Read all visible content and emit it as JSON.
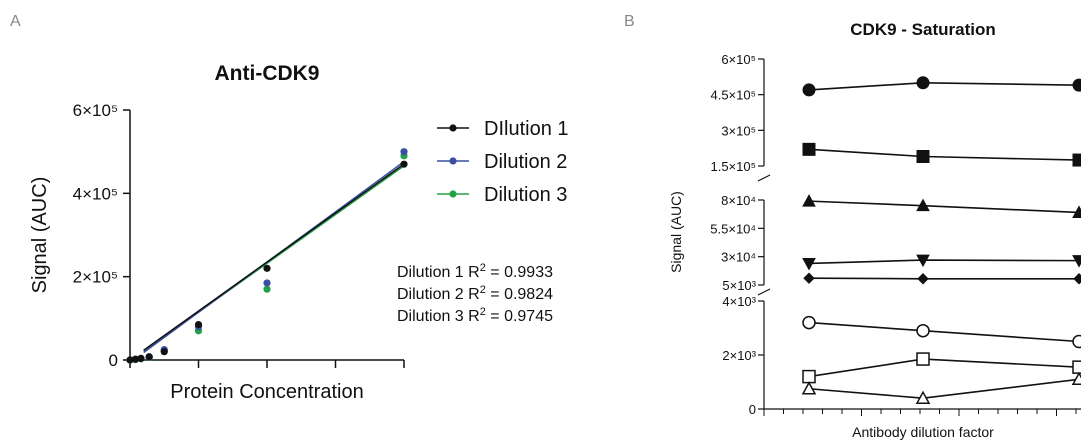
{
  "panel_letters": {
    "a": "A",
    "b": "B"
  },
  "chart_data": [
    {
      "type": "scatter",
      "title": "Anti-CDK9",
      "xlabel": "Protein Concentration",
      "ylabel": "Signal (AUC)",
      "ylim": [
        0,
        600000
      ],
      "xlim": [
        0,
        100
      ],
      "yticks": [
        {
          "value": 0,
          "label": "0"
        },
        {
          "value": 200000,
          "label": "2×10⁵"
        },
        {
          "value": 400000,
          "label": "4×10⁵"
        },
        {
          "value": 600000,
          "label": "6×10⁵"
        }
      ],
      "xticks": [
        0,
        25,
        50,
        75,
        100
      ],
      "legend_position": "right",
      "series": [
        {
          "name": "DIlution 1",
          "color": "#111111",
          "x": [
            0,
            2,
            4,
            7,
            12.5,
            50,
            100
          ],
          "y": [
            0,
            2000,
            4000,
            8000,
            20000,
            220000,
            470000
          ],
          "fit": [
            0,
            470000
          ]
        },
        {
          "name": "Dilution 2",
          "color": "#3a4fa0",
          "x": [
            0,
            2,
            4,
            7,
            12.5,
            25,
            50,
            100
          ],
          "y": [
            0,
            2000,
            3000,
            7000,
            25000,
            80000,
            185000,
            500000
          ],
          "fit": [
            -6000,
            476000
          ]
        },
        {
          "name": "Dilution 3",
          "color": "#23a04a",
          "x": [
            0,
            2,
            4,
            7,
            12.5,
            25,
            50,
            100
          ],
          "y": [
            0,
            1000,
            3000,
            6000,
            22000,
            70000,
            170000,
            490000
          ],
          "fit": [
            -2000,
            466000
          ]
        }
      ],
      "extra_points": [
        {
          "series": "DIlution 1",
          "x": 25,
          "y": 85000
        }
      ],
      "annotations": [
        {
          "label": "Dilution 1 R",
          "sup": "2",
          "rest": " = 0.9933"
        },
        {
          "label": "Dilution 2 R",
          "sup": "2",
          "rest": " = 0.9824"
        },
        {
          "label": "Dilution 3 R",
          "sup": "2",
          "rest": " = 0.9745"
        }
      ]
    },
    {
      "type": "line",
      "title": "CDK9 - Saturation",
      "xlabel": "Antibody dilution factor",
      "ylabel": "Signal (AUC)",
      "axis_breaks": true,
      "x": [
        1,
        2,
        3
      ],
      "segments": [
        {
          "ylim": [
            0,
            4000
          ],
          "ticks": [
            {
              "value": 0,
              "label": "0"
            },
            {
              "value": 2000,
              "label": "2×10³"
            },
            {
              "value": 4000,
              "label": "4×10³"
            }
          ]
        },
        {
          "ylim": [
            5000,
            80000
          ],
          "ticks": [
            {
              "value": 5000,
              "label": "5×10³"
            },
            {
              "value": 30000,
              "label": "3×10⁴"
            },
            {
              "value": 55000,
              "label": "5.5×10⁴"
            },
            {
              "value": 80000,
              "label": "8×10⁴"
            }
          ]
        },
        {
          "ylim": [
            150000,
            600000
          ],
          "ticks": [
            {
              "value": 150000,
              "label": "1.5×10⁵"
            },
            {
              "value": 300000,
              "label": "3×10⁵"
            },
            {
              "value": 450000,
              "label": "4.5×10⁵"
            },
            {
              "value": 600000,
              "label": "6×10⁵"
            }
          ]
        }
      ],
      "series": [
        {
          "marker": "circle-filled",
          "segment": 2,
          "values": [
            470000,
            500000,
            490000
          ]
        },
        {
          "marker": "square-filled",
          "segment": 2,
          "values": [
            220000,
            190000,
            175000
          ]
        },
        {
          "marker": "triangle-up-filled",
          "segment": 1,
          "values": [
            79000,
            75000,
            69000
          ]
        },
        {
          "marker": "triangle-down-filled",
          "segment": 1,
          "values": [
            24000,
            27000,
            26500
          ]
        },
        {
          "marker": "diamond-filled",
          "segment": 1,
          "values": [
            11000,
            10500,
            10500
          ]
        },
        {
          "marker": "circle-open",
          "segment": 0,
          "values": [
            3200,
            2900,
            2500
          ]
        },
        {
          "marker": "square-open",
          "segment": 0,
          "values": [
            1200,
            1850,
            1550
          ]
        },
        {
          "marker": "triangle-up-open",
          "segment": 0,
          "values": [
            750,
            400,
            1100
          ]
        }
      ]
    }
  ]
}
